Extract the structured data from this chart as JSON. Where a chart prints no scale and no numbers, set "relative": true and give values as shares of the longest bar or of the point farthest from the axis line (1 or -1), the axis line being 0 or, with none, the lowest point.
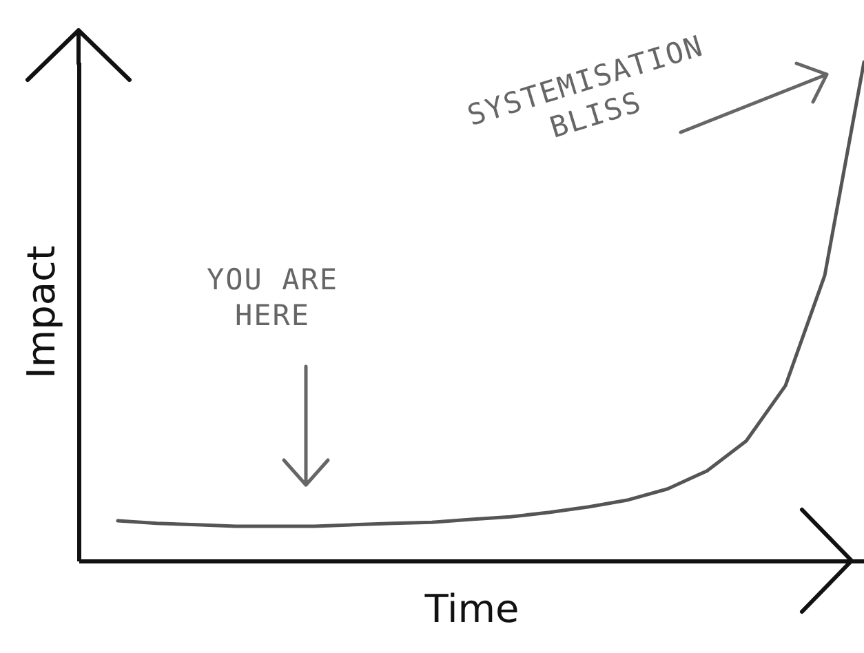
{
  "chart_data": {
    "type": "line",
    "relative": true,
    "xlabel": "Time",
    "ylabel": "Impact",
    "categories": [
      null,
      null,
      null,
      null,
      null,
      null,
      null,
      null,
      null,
      null,
      null,
      null,
      null,
      null,
      null,
      null,
      null,
      null,
      null,
      null
    ],
    "series": [
      {
        "color": "#555555",
        "values": [
          0.08,
          0.075,
          0.072,
          0.069,
          0.069,
          0.069,
          0.072,
          0.075,
          0.077,
          0.083,
          0.088,
          0.097,
          0.108,
          0.122,
          0.144,
          0.18,
          0.24,
          0.351,
          0.572,
          1
        ]
      }
    ],
    "annotations": [
      "YOU ARE\nHERE",
      "SYSTEMISATION\nBLISS"
    ]
  }
}
